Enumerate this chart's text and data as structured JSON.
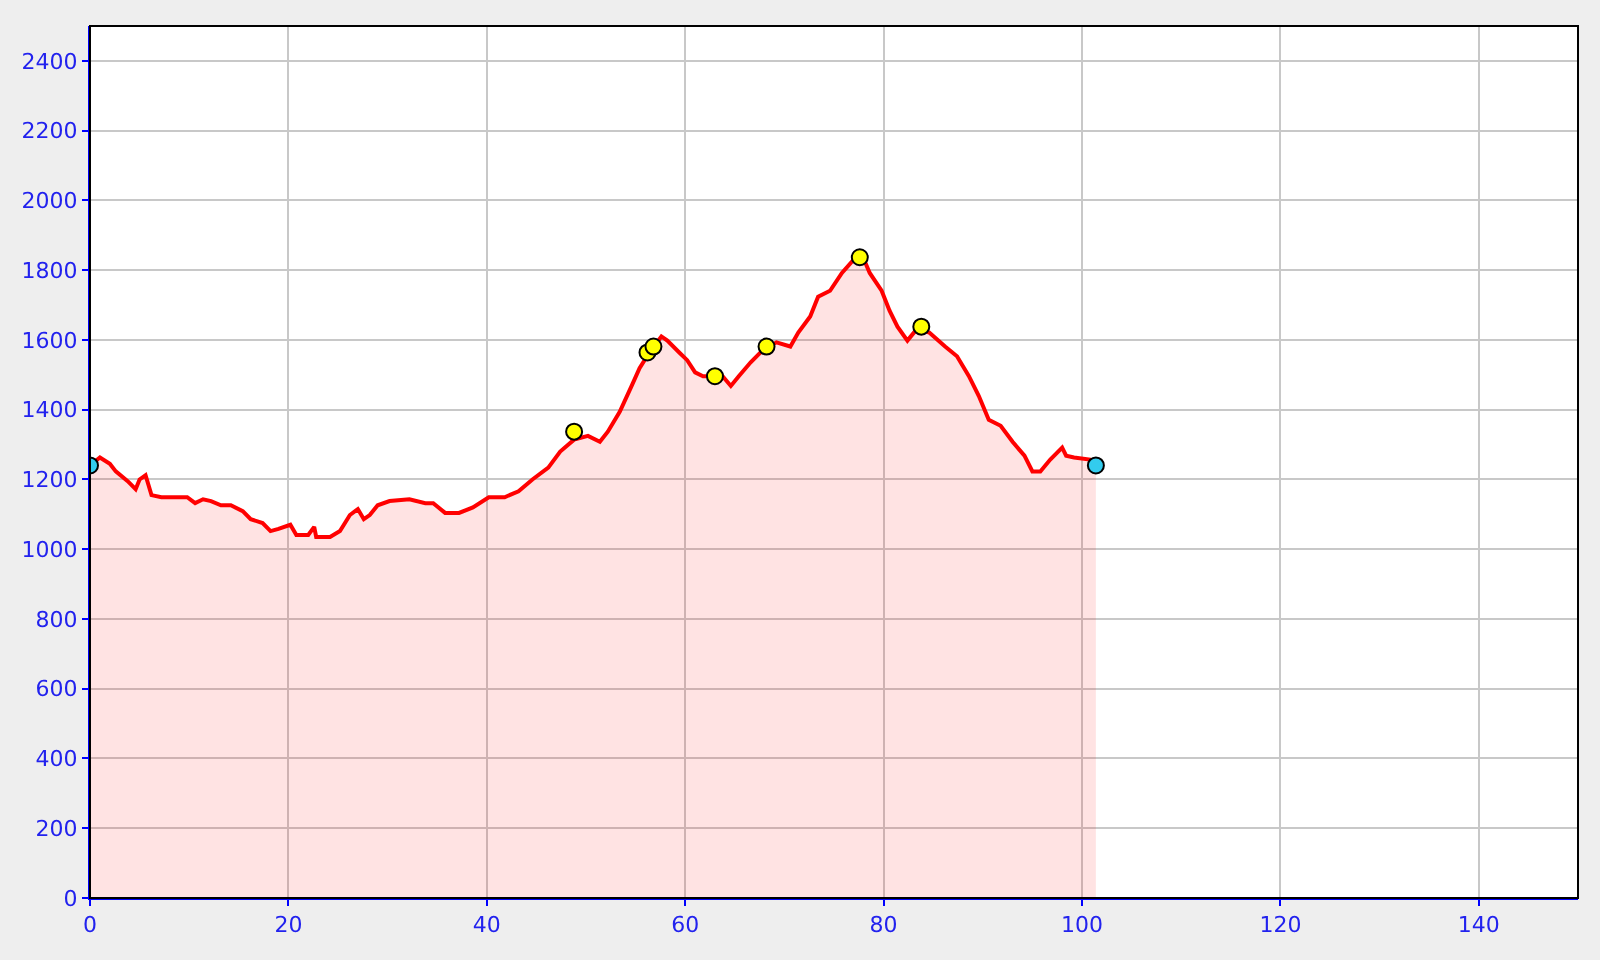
{
  "chart_data": {
    "type": "area",
    "xlim": [
      0,
      150
    ],
    "ylim": [
      0,
      2500
    ],
    "xticks": [
      0,
      20,
      40,
      60,
      80,
      100,
      120,
      140
    ],
    "yticks": [
      0,
      200,
      400,
      600,
      800,
      1000,
      1200,
      1400,
      1600,
      1800,
      2000,
      2200,
      2400
    ],
    "grid": true,
    "series": [
      {
        "color": "#ff0000",
        "x": [
          0,
          1,
          2,
          2.6,
          3.8,
          4.6,
          5,
          5.6,
          6.2,
          7.2,
          9.8,
          10.6,
          11.4,
          12.2,
          13.2,
          14.2,
          15.4,
          16.2,
          17.4,
          18.2,
          19,
          20.2,
          20.8,
          22,
          22.6,
          22.8,
          24.2,
          25.2,
          26.2,
          27,
          27.6,
          28.2,
          29,
          30.2,
          32.2,
          33.8,
          34.6,
          35.8,
          37.2,
          38.6,
          40.2,
          41.8,
          43.2,
          44.6,
          46.2,
          47.4,
          48.8,
          50.2,
          51.4,
          52.2,
          53.4,
          54.6,
          55.4,
          56.4,
          57.6,
          58.2,
          59.4,
          60.2,
          61,
          61.8,
          62.6,
          63.6,
          64.6,
          65.4,
          66.6,
          67.8,
          69.2,
          70.6,
          71.4,
          72.6,
          73.4,
          74.6,
          75.8,
          77.2,
          78,
          78.6,
          79.8,
          80.6,
          81.4,
          82.4,
          83.4,
          84.6,
          86.2,
          87.4,
          88.6,
          89.6,
          90.6,
          91.8,
          93,
          94.2,
          95,
          95.8,
          96.8,
          98,
          98.4,
          99.2,
          100.8,
          101.4
        ],
        "values": [
          1240,
          1263,
          1245,
          1223,
          1195,
          1172,
          1200,
          1212,
          1155,
          1149,
          1149,
          1132,
          1143,
          1138,
          1126,
          1126,
          1109,
          1086,
          1075,
          1052,
          1058,
          1070,
          1041,
          1041,
          1064,
          1035,
          1035,
          1052,
          1098,
          1115,
          1086,
          1098,
          1126,
          1138,
          1143,
          1132,
          1132,
          1104,
          1104,
          1120,
          1149,
          1149,
          1166,
          1200,
          1234,
          1280,
          1314,
          1325,
          1308,
          1337,
          1394,
          1468,
          1519,
          1564,
          1610,
          1598,
          1564,
          1542,
          1507,
          1496,
          1496,
          1502,
          1468,
          1496,
          1536,
          1570,
          1593,
          1581,
          1621,
          1667,
          1724,
          1741,
          1792,
          1837,
          1832,
          1792,
          1741,
          1684,
          1638,
          1598,
          1633,
          1621,
          1581,
          1553,
          1496,
          1439,
          1371,
          1354,
          1308,
          1268,
          1223,
          1223,
          1257,
          1291,
          1268,
          1263,
          1257,
          1240
        ]
      },
      {
        "type": "scatter",
        "color": "#ffff00",
        "marker": "circle",
        "x": [
          48.8,
          56.2,
          56.8,
          63,
          68.2,
          77.6,
          83.8
        ],
        "values": [
          1337,
          1564,
          1581,
          1496,
          1581,
          1837,
          1638
        ]
      },
      {
        "type": "scatter",
        "color": "#33ccee",
        "marker": "circle",
        "x": [
          0,
          101.4
        ],
        "values": [
          1240,
          1240
        ]
      }
    ]
  }
}
